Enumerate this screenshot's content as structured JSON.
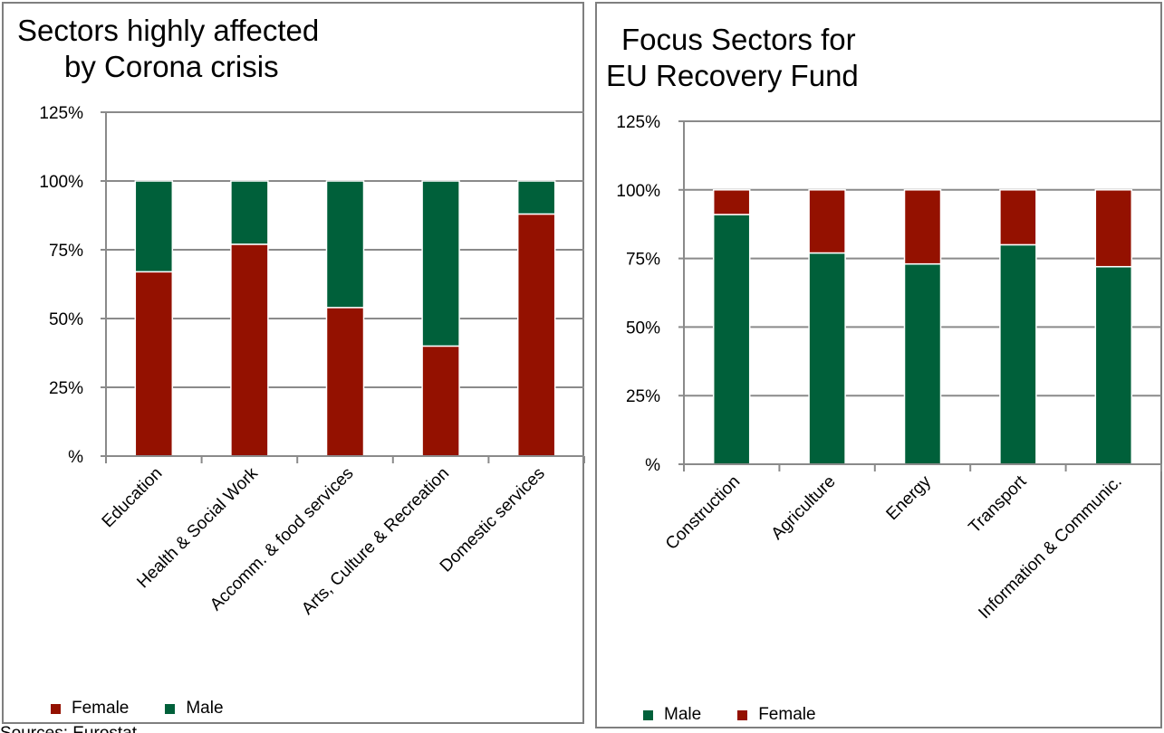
{
  "colors": {
    "female": "#941100",
    "male": "#00603a",
    "grid": "#8a8a8a",
    "axis": "#8a8a8a"
  },
  "source_note": "Sources: Eurostat",
  "chart_data": [
    {
      "type": "bar",
      "stacked": true,
      "title_lines": [
        "Sectors highly affected",
        "by Corona crisis"
      ],
      "categories": [
        "Education",
        "Health & Social Work",
        "Accomm. & food services",
        "Arts, Culture & Recreation",
        "Domestic services"
      ],
      "series": [
        {
          "name": "Female",
          "color_key": "female",
          "values": [
            67,
            77,
            54,
            40,
            88
          ]
        },
        {
          "name": "Male",
          "color_key": "male",
          "values": [
            33,
            23,
            46,
            60,
            12
          ]
        }
      ],
      "yticks": [
        "%",
        "25%",
        "50%",
        "75%",
        "100%",
        "125%"
      ],
      "ylim": [
        0,
        125
      ],
      "grid": true,
      "legend": "bottom-left"
    },
    {
      "type": "bar",
      "stacked": true,
      "title_lines": [
        "Focus Sectors for",
        "EU Recovery Fund"
      ],
      "categories": [
        "Construction",
        "Agriculture",
        "Energy",
        "Transport",
        "Information & Communic."
      ],
      "series": [
        {
          "name": "Male",
          "color_key": "male",
          "values": [
            91,
            77,
            73,
            80,
            72
          ]
        },
        {
          "name": "Female",
          "color_key": "female",
          "values": [
            9,
            23,
            27,
            20,
            28
          ]
        }
      ],
      "yticks": [
        "%",
        "25%",
        "50%",
        "75%",
        "100%",
        "125%"
      ],
      "ylim": [
        0,
        125
      ],
      "grid": true,
      "legend": "bottom-left"
    }
  ]
}
